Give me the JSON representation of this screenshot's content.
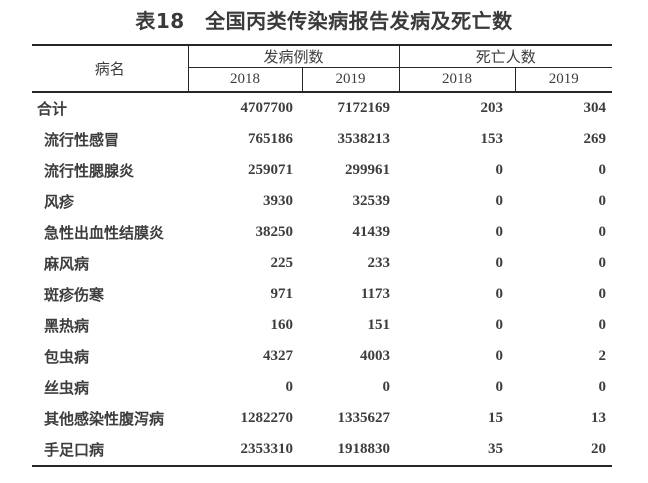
{
  "title": "表18　全国丙类传染病报告发病及死亡数",
  "table": {
    "headers": {
      "disease": "病名",
      "cases_group": "发病例数",
      "deaths_group": "死亡人数",
      "cases_years": [
        "2018",
        "2019"
      ],
      "deaths_years": [
        "2018",
        "2019"
      ]
    },
    "rows": [
      {
        "name": "合计",
        "is_total": true,
        "cases_2018": "4707700",
        "cases_2019": "7172169",
        "deaths_2018": "203",
        "deaths_2019": "304"
      },
      {
        "name": "流行性感冒",
        "is_total": false,
        "cases_2018": "765186",
        "cases_2019": "3538213",
        "deaths_2018": "153",
        "deaths_2019": "269"
      },
      {
        "name": "流行性腮腺炎",
        "is_total": false,
        "cases_2018": "259071",
        "cases_2019": "299961",
        "deaths_2018": "0",
        "deaths_2019": "0"
      },
      {
        "name": "风疹",
        "is_total": false,
        "cases_2018": "3930",
        "cases_2019": "32539",
        "deaths_2018": "0",
        "deaths_2019": "0"
      },
      {
        "name": "急性出血性结膜炎",
        "is_total": false,
        "cases_2018": "38250",
        "cases_2019": "41439",
        "deaths_2018": "0",
        "deaths_2019": "0"
      },
      {
        "name": "麻风病",
        "is_total": false,
        "cases_2018": "225",
        "cases_2019": "233",
        "deaths_2018": "0",
        "deaths_2019": "0"
      },
      {
        "name": "斑疹伤寒",
        "is_total": false,
        "cases_2018": "971",
        "cases_2019": "1173",
        "deaths_2018": "0",
        "deaths_2019": "0"
      },
      {
        "name": "黑热病",
        "is_total": false,
        "cases_2018": "160",
        "cases_2019": "151",
        "deaths_2018": "0",
        "deaths_2019": "0"
      },
      {
        "name": "包虫病",
        "is_total": false,
        "cases_2018": "4327",
        "cases_2019": "4003",
        "deaths_2018": "0",
        "deaths_2019": "2"
      },
      {
        "name": "丝虫病",
        "is_total": false,
        "cases_2018": "0",
        "cases_2019": "0",
        "deaths_2018": "0",
        "deaths_2019": "0"
      },
      {
        "name": "其他感染性腹泻病",
        "is_total": false,
        "cases_2018": "1282270",
        "cases_2019": "1335627",
        "deaths_2018": "15",
        "deaths_2019": "13"
      },
      {
        "name": "手足口病",
        "is_total": false,
        "cases_2018": "2353310",
        "cases_2019": "1918830",
        "deaths_2018": "35",
        "deaths_2019": "20"
      }
    ]
  },
  "colors": {
    "text": "#3d3d3d",
    "title": "#3a3a3a",
    "border": "#262626",
    "background": "#ffffff"
  }
}
